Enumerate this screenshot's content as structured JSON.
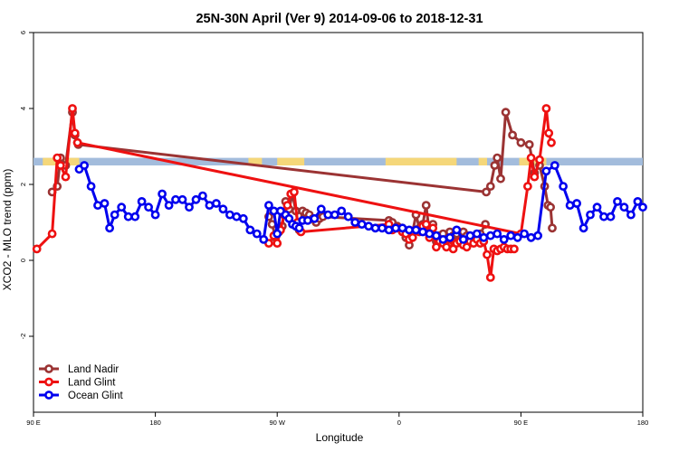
{
  "chart_data": {
    "type": "line",
    "title": "25N-30N April (Ver 9)   2014-09-06 to 2018-12-31",
    "xlabel": "Longitude",
    "ylabel": "XCO2 - MLO trend (ppm)",
    "xlim": [
      90,
      450
    ],
    "ylim": [
      -4,
      6
    ],
    "x_ticks": [
      {
        "value": 90,
        "label": "90 E"
      },
      {
        "value": 162,
        "label": "180"
      },
      {
        "value": 234,
        "label": "90 W"
      },
      {
        "value": 306,
        "label": "0"
      },
      {
        "value": 378,
        "label": "90 E"
      },
      {
        "value": 450,
        "label": "180"
      }
    ],
    "y_ticks": [
      {
        "value": -2,
        "label": "-2"
      },
      {
        "value": 0,
        "label": "0"
      },
      {
        "value": 2,
        "label": "2"
      },
      {
        "value": 4,
        "label": "4"
      },
      {
        "value": 6,
        "label": "6"
      }
    ],
    "grid": false,
    "legend_position": "bottom-left",
    "land_sea_strip": {
      "y_range": [
        2.5,
        2.7
      ],
      "ocean_color": "#a3bcdc",
      "land_color": "#f5d77a",
      "land_segments": [
        [
          95.5,
          117
        ],
        [
          217,
          225
        ],
        [
          234,
          250
        ],
        [
          298,
          340
        ],
        [
          353,
          358
        ],
        [
          377,
          393
        ]
      ]
    },
    "series": [
      {
        "name": "Land Nadir",
        "color": "#9b3333",
        "x": [
          101,
          104,
          106,
          109,
          113,
          114.5,
          116,
          116.5,
          357.5,
          360,
          362.5,
          364,
          366,
          369,
          373,
          378,
          383,
          386,
          389,
          392,
          394,
          395.5,
          396.5
        ],
        "y": [
          1.8,
          1.95,
          2.7,
          2.5,
          3.9,
          3.3,
          3.1,
          3.05,
          1.8,
          1.95,
          2.5,
          2.7,
          2.15,
          3.9,
          3.3,
          3.1,
          3.05,
          2.3,
          2.5,
          1.95,
          1.45,
          1.4,
          0.85
        ],
        "x2": [
          229,
          231,
          233,
          235,
          237,
          239,
          241,
          243,
          245,
          247,
          249,
          251,
          253,
          255,
          257,
          259,
          261,
          300,
          302,
          305,
          308,
          310,
          312,
          314,
          316,
          318,
          320,
          322,
          324,
          326,
          328,
          330,
          332,
          334,
          336,
          338,
          340,
          342,
          344,
          346,
          348,
          350,
          352,
          354,
          357
        ],
        "y2": [
          1.15,
          0.95,
          0.6,
          0.75,
          0.9,
          1.55,
          1.35,
          1.75,
          1.3,
          0.8,
          1.3,
          1.25,
          1.2,
          1.1,
          1.0,
          1.1,
          1.15,
          1.05,
          1.0,
          0.9,
          0.85,
          0.6,
          0.4,
          0.75,
          1.2,
          0.85,
          0.95,
          1.45,
          0.7,
          0.95,
          0.5,
          0.65,
          0.7,
          0.55,
          0.75,
          0.65,
          0.7,
          0.55,
          0.75,
          0.65,
          0.55,
          0.6,
          0.65,
          0.7,
          0.95
        ]
      },
      {
        "name": "Land Glint",
        "color": "#ee1111",
        "x": [
          92,
          101,
          104,
          106,
          109,
          113,
          114.5,
          116,
          378,
          382,
          384,
          386,
          389,
          393,
          394.5,
          396
        ],
        "y": [
          0.3,
          0.7,
          2.7,
          2.5,
          2.2,
          4.0,
          3.35,
          3.1,
          0.7,
          1.95,
          2.7,
          2.2,
          2.65,
          4.0,
          3.35,
          3.1
        ],
        "x2": [
          229,
          232,
          234,
          236,
          238,
          240,
          242,
          244,
          246,
          248,
          300,
          302,
          305,
          308,
          310,
          312,
          314,
          316,
          318,
          320,
          322,
          324,
          326,
          328,
          330,
          332,
          334,
          336,
          338,
          340,
          342,
          344,
          346,
          348,
          350,
          352,
          354,
          356,
          358,
          360,
          362,
          364,
          366,
          368,
          370,
          372,
          374
        ],
        "y2": [
          0.45,
          0.65,
          0.45,
          0.8,
          1.2,
          1.45,
          1.75,
          1.8,
          1.0,
          0.75,
          0.95,
          0.8,
          0.85,
          0.75,
          0.7,
          0.55,
          0.6,
          0.8,
          0.75,
          0.9,
          0.95,
          0.6,
          0.85,
          0.35,
          0.5,
          0.45,
          0.35,
          0.55,
          0.3,
          0.45,
          0.5,
          0.4,
          0.35,
          0.5,
          0.45,
          0.55,
          0.45,
          0.5,
          0.15,
          -0.45,
          0.3,
          0.25,
          0.3,
          0.35,
          0.3,
          0.3,
          0.3
        ]
      },
      {
        "name": "Ocean Glint",
        "color": "#0000ee",
        "x": [
          117,
          120,
          124,
          128,
          132,
          135,
          138,
          142,
          146,
          150,
          154,
          158,
          162,
          166,
          170,
          174,
          178,
          182,
          186,
          190,
          194,
          198,
          202,
          206,
          210,
          214,
          218,
          222,
          226,
          229,
          232,
          234,
          236,
          239,
          241,
          243,
          245,
          247,
          249,
          252,
          256,
          260,
          264,
          268,
          272,
          276,
          280,
          284,
          288,
          292,
          296,
          300,
          304,
          308,
          312,
          316,
          320,
          324,
          328,
          332,
          336,
          340,
          344,
          348,
          352,
          356,
          360,
          364,
          368,
          372,
          376,
          380,
          384,
          388,
          393,
          398,
          403,
          407,
          411,
          415,
          419,
          423,
          427,
          431,
          435,
          439,
          443,
          447,
          450
        ],
        "y": [
          2.4,
          2.5,
          1.95,
          1.45,
          1.5,
          0.85,
          1.2,
          1.4,
          1.15,
          1.15,
          1.55,
          1.4,
          1.2,
          1.75,
          1.45,
          1.6,
          1.6,
          1.4,
          1.6,
          1.7,
          1.45,
          1.5,
          1.35,
          1.2,
          1.15,
          1.1,
          0.8,
          0.7,
          0.55,
          1.45,
          1.3,
          0.7,
          1.3,
          1.2,
          1.1,
          0.95,
          0.9,
          0.85,
          1.05,
          1.05,
          1.1,
          1.35,
          1.2,
          1.2,
          1.3,
          1.15,
          1.0,
          0.95,
          0.9,
          0.85,
          0.85,
          0.8,
          0.85,
          0.85,
          0.8,
          0.8,
          0.75,
          0.7,
          0.65,
          0.55,
          0.6,
          0.8,
          0.55,
          0.65,
          0.7,
          0.6,
          0.65,
          0.7,
          0.55,
          0.65,
          0.6,
          0.7,
          0.6,
          0.65,
          2.35,
          2.5,
          1.95,
          1.45,
          1.5,
          0.85,
          1.2,
          1.4,
          1.15,
          1.15,
          1.55,
          1.4,
          1.2,
          1.55,
          1.4
        ]
      }
    ]
  }
}
